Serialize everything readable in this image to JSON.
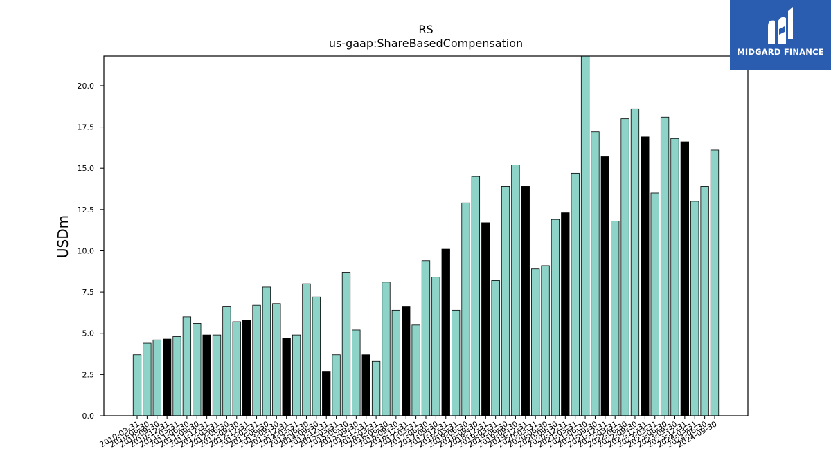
{
  "logo": {
    "text": "MIDGARD FINANCE"
  },
  "chart_data": {
    "type": "bar",
    "title": "RS",
    "subtitle": "us-gaap:ShareBasedCompensation",
    "ylabel": "USDm",
    "xlabel": "",
    "ylim": [
      0,
      21.8
    ],
    "yticks": [
      "0.0",
      "2.5",
      "5.0",
      "7.5",
      "10.0",
      "12.5",
      "15.0",
      "17.5",
      "20.0"
    ],
    "colors": {
      "quarter": "#8dd3c7",
      "annual": "#000000",
      "edge": "#000000"
    },
    "categories": [
      "2010-03-31",
      "2010-06-30",
      "2010-09-30",
      "2010-12-31",
      "2011-03-31",
      "2011-06-30",
      "2011-09-30",
      "2011-12-31",
      "2012-03-31",
      "2012-06-30",
      "2012-09-30",
      "2012-12-31",
      "2013-03-31",
      "2013-06-30",
      "2013-09-30",
      "2013-12-31",
      "2014-03-31",
      "2014-06-30",
      "2014-09-30",
      "2014-12-31",
      "2015-03-31",
      "2015-06-30",
      "2015-09-30",
      "2015-12-31",
      "2016-03-31",
      "2016-06-30",
      "2016-09-30",
      "2016-12-31",
      "2017-03-31",
      "2017-06-30",
      "2017-09-30",
      "2017-12-31",
      "2018-03-31",
      "2018-06-30",
      "2018-09-30",
      "2018-12-31",
      "2019-03-31",
      "2019-06-30",
      "2019-09-30",
      "2019-12-31",
      "2020-03-31",
      "2020-06-30",
      "2020-09-30",
      "2020-12-31",
      "2021-03-31",
      "2021-06-30",
      "2021-09-30",
      "2021-12-31",
      "2022-03-31",
      "2022-06-30",
      "2022-09-30",
      "2022-12-31",
      "2023-03-31",
      "2023-06-30",
      "2023-09-30",
      "2023-12-31",
      "2024-03-31",
      "2024-06-30",
      "2024-09-30"
    ],
    "values": [
      3.7,
      4.4,
      4.6,
      4.65,
      4.8,
      6.0,
      5.6,
      4.9,
      4.9,
      6.6,
      5.7,
      5.8,
      6.7,
      7.8,
      6.8,
      4.7,
      4.9,
      8.0,
      7.2,
      2.7,
      3.7,
      8.7,
      5.2,
      3.7,
      3.3,
      8.1,
      6.4,
      6.6,
      5.5,
      9.4,
      8.4,
      10.1,
      6.4,
      12.9,
      14.5,
      11.7,
      8.2,
      13.9,
      15.2,
      13.9,
      8.9,
      9.1,
      11.9,
      12.3,
      14.7,
      21.8,
      17.2,
      15.7,
      11.8,
      18.0,
      18.6,
      16.9,
      13.5,
      18.1,
      16.8,
      16.6,
      13.0,
      13.9,
      16.1
    ],
    "annual_flags": [
      false,
      false,
      false,
      true,
      false,
      false,
      false,
      true,
      false,
      false,
      false,
      true,
      false,
      false,
      false,
      true,
      false,
      false,
      false,
      true,
      false,
      false,
      false,
      true,
      false,
      false,
      false,
      true,
      false,
      false,
      false,
      true,
      false,
      false,
      false,
      true,
      false,
      false,
      false,
      true,
      false,
      false,
      false,
      true,
      false,
      false,
      false,
      true,
      false,
      false,
      false,
      true,
      false,
      false,
      false,
      true,
      false,
      false,
      false
    ],
    "grid": false,
    "legend": "none"
  }
}
